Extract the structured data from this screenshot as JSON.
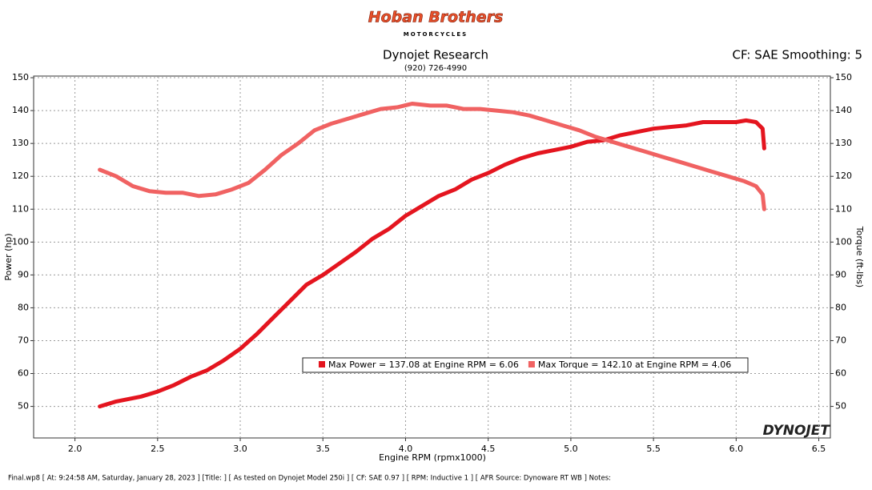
{
  "chart_data": {
    "type": "line",
    "logo": {
      "title": "Hoban Brothers",
      "subtitle": "MOTORCYCLES"
    },
    "title": "Dynojet Research",
    "subtitle": "(920) 726-4990",
    "corner_note": "CF: SAE Smoothing: 5",
    "xlabel": "Engine RPM (rpmx1000)",
    "ylabel": "Power (hp)",
    "y2label": "Torque (ft-lbs)",
    "brand": "DYNOJET",
    "footer": "Final.wp8 [ At: 9:24:58 AM, Saturday, January 28, 2023 ] [Title: ]  [ As tested on Dynojet Model 250i ] [ CF: SAE 0.97 ] [ RPM: Inductive 1 ] [ AFR Source: Dynoware RT WB ] Notes:",
    "xlim": [
      1.75,
      6.57
    ],
    "ylim": [
      40.4,
      150.5
    ],
    "y2lim": [
      40.4,
      150.5
    ],
    "xticks": [
      {
        "value": 2,
        "label": "2.0"
      },
      2.5,
      {
        "value": 3,
        "label": "3.0"
      },
      3.5,
      {
        "value": 4,
        "label": "4.0"
      },
      4.5,
      {
        "value": 5,
        "label": "5.0"
      },
      5.5,
      {
        "value": 6,
        "label": "6.0"
      },
      6.5
    ],
    "yticks": [
      50,
      60,
      70,
      80,
      90,
      100,
      110,
      120,
      130,
      140,
      150
    ],
    "y2ticks": [
      50,
      60,
      70,
      80,
      90,
      100,
      110,
      120,
      130,
      140,
      150
    ],
    "grid": true,
    "series": [
      {
        "name": "Max Power = 137.08 at Engine RPM = 6.06",
        "color": "#e4151f",
        "x": [
          2.15,
          2.25,
          2.4,
          2.5,
          2.6,
          2.7,
          2.8,
          2.9,
          3.0,
          3.1,
          3.2,
          3.3,
          3.4,
          3.5,
          3.6,
          3.7,
          3.8,
          3.9,
          4.0,
          4.1,
          4.2,
          4.3,
          4.4,
          4.5,
          4.6,
          4.7,
          4.8,
          4.9,
          5.0,
          5.1,
          5.2,
          5.3,
          5.4,
          5.5,
          5.6,
          5.7,
          5.8,
          5.9,
          6.0,
          6.06,
          6.12,
          6.16,
          6.17
        ],
        "values": [
          50,
          51.5,
          53,
          54.5,
          56.5,
          59,
          61,
          64,
          67.5,
          72,
          77,
          82,
          87,
          90,
          93.5,
          97,
          101,
          104,
          108,
          111,
          114,
          116,
          119,
          121,
          123.5,
          125.5,
          127,
          128,
          129,
          130.5,
          131,
          132.5,
          133.5,
          134.5,
          135,
          135.5,
          136.5,
          136.5,
          136.5,
          137,
          136.5,
          134.5,
          128.5
        ]
      },
      {
        "name": "Max Torque = 142.10 at Engine RPM = 4.06",
        "color": "#f06262",
        "axis": "y2",
        "x": [
          2.15,
          2.25,
          2.35,
          2.45,
          2.55,
          2.65,
          2.75,
          2.85,
          2.95,
          3.05,
          3.15,
          3.25,
          3.35,
          3.45,
          3.55,
          3.65,
          3.75,
          3.85,
          3.95,
          4.04,
          4.15,
          4.25,
          4.35,
          4.45,
          4.55,
          4.65,
          4.75,
          4.85,
          4.95,
          5.05,
          5.15,
          5.25,
          5.35,
          5.45,
          5.55,
          5.65,
          5.75,
          5.85,
          5.95,
          6.05,
          6.12,
          6.16,
          6.17
        ],
        "values": [
          122,
          120,
          117,
          115.5,
          115,
          115,
          114,
          114.5,
          116,
          118,
          122,
          126.5,
          130,
          134,
          136,
          137.5,
          139,
          140.5,
          141,
          142.1,
          141.5,
          141.5,
          140.5,
          140.5,
          140,
          139.5,
          138.5,
          137,
          135.5,
          134,
          132,
          130.5,
          129,
          127.5,
          126,
          124.5,
          123,
          121.5,
          120,
          118.5,
          117,
          114.5,
          110
        ]
      }
    ]
  }
}
